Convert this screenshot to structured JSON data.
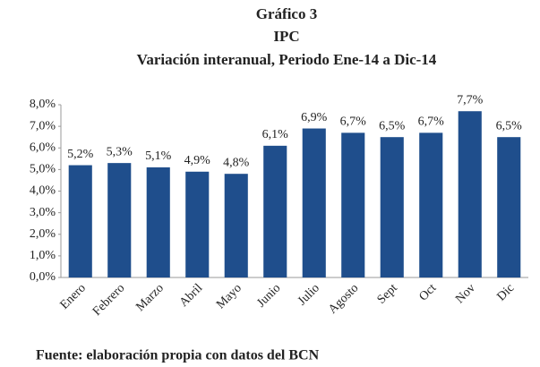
{
  "chart_data": {
    "type": "bar",
    "title": [
      "Gráfico 3",
      "IPC",
      "Variación interanual, Periodo Ene-14 a Dic-14"
    ],
    "categories": [
      "Enero",
      "Febrero",
      "Marzo",
      "Abril",
      "Mayo",
      "Junio",
      "Julio",
      "Agosto",
      "Sept",
      "Oct",
      "Nov",
      "Dic"
    ],
    "values": [
      5.2,
      5.3,
      5.1,
      4.9,
      4.8,
      6.1,
      6.9,
      6.7,
      6.5,
      6.7,
      7.7,
      6.5
    ],
    "value_labels": [
      "5,2%",
      "5,3%",
      "5,1%",
      "4,9%",
      "4,8%",
      "6,1%",
      "6,9%",
      "6,7%",
      "6,5%",
      "6,7%",
      "7,7%",
      "6,5%"
    ],
    "color": "#1f4e8c",
    "ylim": [
      0,
      8
    ],
    "yticks": [
      {
        "value": 0,
        "label": "0,0%"
      },
      {
        "value": 1,
        "label": "1,0%"
      },
      {
        "value": 2,
        "label": "2,0%"
      },
      {
        "value": 3,
        "label": "3,0%"
      },
      {
        "value": 4,
        "label": "4,0%"
      },
      {
        "value": 5,
        "label": "5,0%"
      },
      {
        "value": 6,
        "label": "6,0%"
      },
      {
        "value": 7,
        "label": "7,0%"
      },
      {
        "value": 8,
        "label": "8,0%"
      }
    ],
    "grid": false,
    "source": "Fuente: elaboración propia con datos del BCN"
  }
}
